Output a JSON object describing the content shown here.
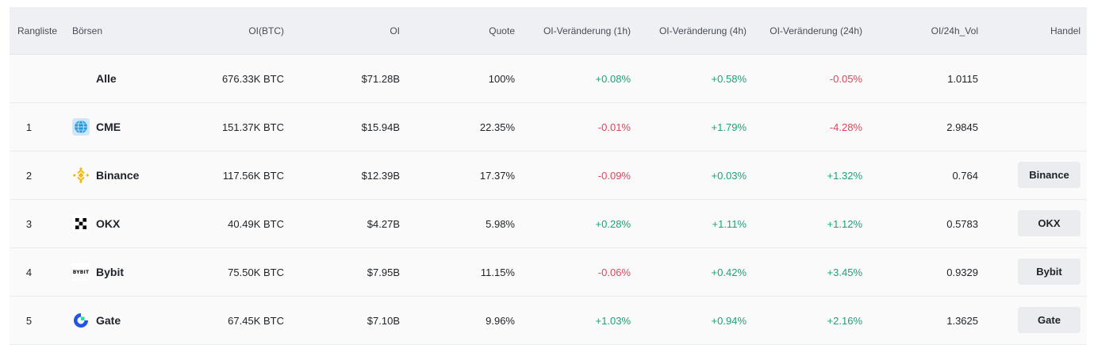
{
  "colors": {
    "positive": "#1aa37a",
    "negative": "#e0445c",
    "header_bg": "#eef0f3",
    "row_bg": "#fafafa",
    "button_bg": "#eaecef"
  },
  "header": {
    "rank": "Rangliste",
    "exchange": "Börsen",
    "oi_btc": "OI(BTC)",
    "oi": "OI",
    "quote": "Quote",
    "change_1h": "OI-Veränderung (1h)",
    "change_4h": "OI-Veränderung (4h)",
    "change_24h": "OI-Veränderung (24h)",
    "oi_vol": "OI/24h_Vol",
    "trade": "Handel"
  },
  "total": {
    "name": "Alle",
    "oi_btc": "676.33K BTC",
    "oi": "$71.28B",
    "quote": "100%",
    "change_1h": "+0.08%",
    "change_4h": "+0.58%",
    "change_24h": "-0.05%",
    "oi_vol": "1.0115"
  },
  "rows": [
    {
      "rank": "1",
      "name": "CME",
      "icon": "cme-globe-icon",
      "oi_btc": "151.37K BTC",
      "oi": "$15.94B",
      "quote": "22.35%",
      "change_1h": "-0.01%",
      "change_4h": "+1.79%",
      "change_24h": "-4.28%",
      "oi_vol": "2.9845",
      "trade": ""
    },
    {
      "rank": "2",
      "name": "Binance",
      "icon": "binance-logo-icon",
      "oi_btc": "117.56K BTC",
      "oi": "$12.39B",
      "quote": "17.37%",
      "change_1h": "-0.09%",
      "change_4h": "+0.03%",
      "change_24h": "+1.32%",
      "oi_vol": "0.764",
      "trade": "Binance"
    },
    {
      "rank": "3",
      "name": "OKX",
      "icon": "okx-logo-icon",
      "oi_btc": "40.49K BTC",
      "oi": "$4.27B",
      "quote": "5.98%",
      "change_1h": "+0.28%",
      "change_4h": "+1.11%",
      "change_24h": "+1.12%",
      "oi_vol": "0.5783",
      "trade": "OKX"
    },
    {
      "rank": "4",
      "name": "Bybit",
      "icon": "bybit-logo-icon",
      "logo_text": "BYBIT",
      "oi_btc": "75.50K BTC",
      "oi": "$7.95B",
      "quote": "11.15%",
      "change_1h": "-0.06%",
      "change_4h": "+0.42%",
      "change_24h": "+3.45%",
      "oi_vol": "0.9329",
      "trade": "Bybit"
    },
    {
      "rank": "5",
      "name": "Gate",
      "icon": "gate-logo-icon",
      "oi_btc": "67.45K BTC",
      "oi": "$7.10B",
      "quote": "9.96%",
      "change_1h": "+1.03%",
      "change_4h": "+0.94%",
      "change_24h": "+2.16%",
      "oi_vol": "1.3625",
      "trade": "Gate"
    }
  ]
}
